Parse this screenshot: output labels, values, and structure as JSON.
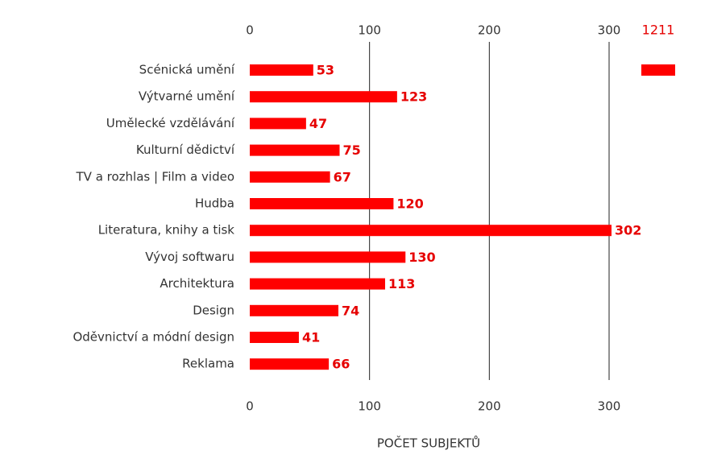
{
  "chart_data": {
    "type": "bar",
    "orientation": "horizontal",
    "categories": [
      "Scénická umění",
      "Výtvarné umění",
      "Umělecké vzdělávání",
      "Kulturní dědictví",
      "TV a rozhlas | Film a video",
      "Hudba",
      "Literatura, knihy a tisk",
      "Vývoj softwaru",
      "Architektura",
      "Design",
      "Oděvnictví a módní design",
      "Reklama"
    ],
    "values": [
      53,
      123,
      47,
      75,
      67,
      120,
      302,
      130,
      113,
      74,
      41,
      66
    ],
    "color": "#ff0000",
    "xlim": [
      0,
      300
    ],
    "xticks": [
      0,
      100,
      200,
      300
    ],
    "grid": true,
    "x_label": "POČET SUBJEKTŮ",
    "total": 1211
  }
}
